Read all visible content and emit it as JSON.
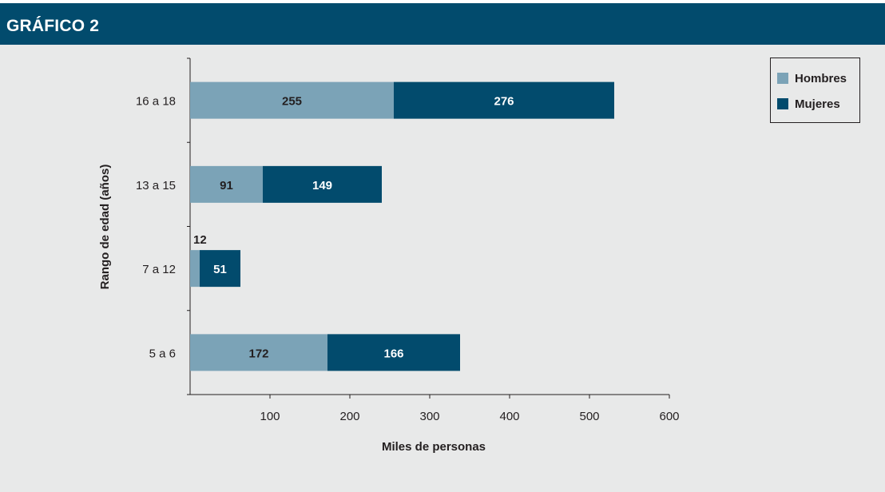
{
  "header": {
    "title": "GRÁFICO 2"
  },
  "colors": {
    "header_bg": "#024b6d",
    "panel_bg": "#e8e9e9",
    "hombres": "#7ba3b7",
    "mujeres": "#024b6d",
    "axis": "#231f20"
  },
  "legend": {
    "hombres": "Hombres",
    "mujeres": "Mujeres"
  },
  "chart_data": {
    "type": "bar",
    "orientation": "horizontal",
    "stacked": true,
    "title": "",
    "xlabel": "Miles de personas",
    "ylabel": "Rango de edad (años)",
    "xlim": [
      0,
      600
    ],
    "xticks": [
      100,
      200,
      300,
      400,
      500,
      600
    ],
    "categories": [
      "16 a 18",
      "13 a 15",
      "7 a 12",
      "5 a 6"
    ],
    "series": [
      {
        "name": "Hombres",
        "values": [
          255,
          91,
          12,
          172
        ]
      },
      {
        "name": "Mujeres",
        "values": [
          276,
          149,
          51,
          166
        ]
      }
    ],
    "legend_position": "top-right",
    "grid": false
  }
}
